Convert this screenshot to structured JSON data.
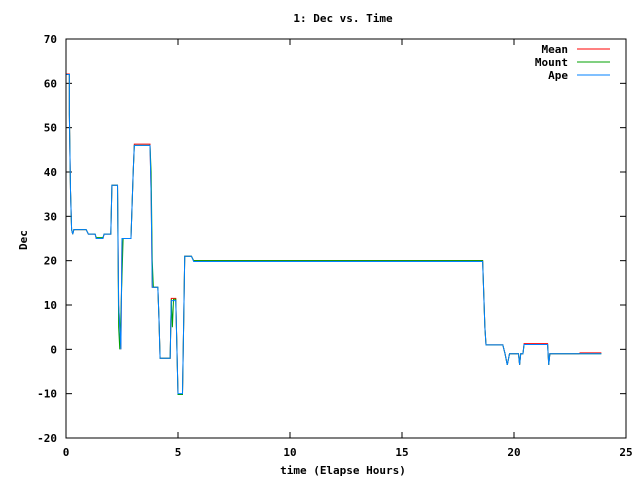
{
  "chart_data": {
    "type": "line",
    "title": "1: Dec vs. Time",
    "xlabel": "time (Elapse Hours)",
    "ylabel": "Dec",
    "xlim": [
      0,
      25
    ],
    "ylim": [
      -20,
      70
    ],
    "xticks": [
      0,
      5,
      10,
      15,
      20,
      25
    ],
    "yticks": [
      -20,
      -10,
      0,
      10,
      20,
      30,
      40,
      50,
      60,
      70
    ],
    "grid": false,
    "legend_position": "top-right",
    "series": [
      {
        "name": "Mean",
        "color": "#ff0000",
        "points": [
          [
            0,
            62.1
          ],
          [
            0.15,
            62.1
          ],
          [
            0.15,
            53
          ],
          [
            0.2,
            36
          ],
          [
            0.25,
            27
          ],
          [
            0.3,
            26
          ],
          [
            0.35,
            27
          ],
          [
            0.9,
            27
          ],
          [
            1.0,
            26
          ],
          [
            1.3,
            26
          ],
          [
            1.35,
            25
          ],
          [
            1.65,
            25
          ],
          [
            1.7,
            26
          ],
          [
            2.0,
            26
          ],
          [
            2.05,
            37
          ],
          [
            2.3,
            37
          ],
          [
            2.35,
            10
          ],
          [
            2.45,
            0
          ],
          [
            2.5,
            25
          ],
          [
            2.9,
            25
          ],
          [
            3.0,
            40
          ],
          [
            3.05,
            46.3
          ],
          [
            3.75,
            46.3
          ],
          [
            3.8,
            35
          ],
          [
            3.85,
            14
          ],
          [
            4.1,
            14
          ],
          [
            4.15,
            7
          ],
          [
            4.2,
            -2
          ],
          [
            4.65,
            -2
          ],
          [
            4.7,
            11.5
          ],
          [
            4.9,
            11.5
          ],
          [
            5.0,
            -10.2
          ],
          [
            5.2,
            -10.2
          ],
          [
            5.25,
            5
          ],
          [
            5.3,
            21
          ],
          [
            5.6,
            21
          ],
          [
            5.7,
            20
          ],
          [
            18.6,
            20
          ],
          [
            18.7,
            5
          ],
          [
            18.75,
            1
          ],
          [
            19.5,
            1
          ],
          [
            19.6,
            -1
          ],
          [
            19.7,
            -3.5
          ],
          [
            19.8,
            -1
          ],
          [
            20.2,
            -1
          ],
          [
            20.25,
            -3.5
          ],
          [
            20.3,
            -1
          ],
          [
            20.4,
            -1
          ],
          [
            20.45,
            1.3
          ],
          [
            21.5,
            1.3
          ],
          [
            21.55,
            -3.5
          ],
          [
            21.6,
            -1
          ],
          [
            22.9,
            -1
          ],
          [
            22.95,
            -0.8
          ],
          [
            23.9,
            -0.8
          ]
        ]
      },
      {
        "name": "Mount",
        "color": "#00a000",
        "points": [
          [
            0,
            62
          ],
          [
            0.15,
            62
          ],
          [
            0.15,
            53
          ],
          [
            0.2,
            36
          ],
          [
            0.25,
            27
          ],
          [
            0.3,
            26
          ],
          [
            0.35,
            27
          ],
          [
            0.9,
            27
          ],
          [
            1.0,
            26
          ],
          [
            1.3,
            26
          ],
          [
            1.35,
            25.2
          ],
          [
            1.65,
            25.2
          ],
          [
            1.7,
            26
          ],
          [
            2.0,
            26
          ],
          [
            2.05,
            37
          ],
          [
            2.3,
            37
          ],
          [
            2.35,
            5
          ],
          [
            2.4,
            0
          ],
          [
            2.45,
            8
          ],
          [
            2.55,
            25
          ],
          [
            2.9,
            25
          ],
          [
            3.0,
            40
          ],
          [
            3.05,
            46
          ],
          [
            3.75,
            46
          ],
          [
            3.8,
            40
          ],
          [
            3.85,
            20
          ],
          [
            3.9,
            14
          ],
          [
            4.1,
            14
          ],
          [
            4.15,
            7
          ],
          [
            4.2,
            -2
          ],
          [
            4.65,
            -2
          ],
          [
            4.7,
            11.3
          ],
          [
            4.75,
            5
          ],
          [
            4.8,
            11.3
          ],
          [
            4.9,
            11.3
          ],
          [
            5.0,
            -10.2
          ],
          [
            5.2,
            -10.2
          ],
          [
            5.25,
            5
          ],
          [
            5.3,
            21
          ],
          [
            5.6,
            21
          ],
          [
            5.7,
            20
          ],
          [
            18.6,
            20
          ],
          [
            18.7,
            5
          ],
          [
            18.75,
            1
          ],
          [
            19.5,
            1
          ],
          [
            19.6,
            -1
          ],
          [
            19.7,
            -3.5
          ],
          [
            19.8,
            -1
          ],
          [
            20.2,
            -1
          ],
          [
            20.25,
            -3.5
          ],
          [
            20.3,
            -1
          ],
          [
            20.4,
            -1
          ],
          [
            20.45,
            1.1
          ],
          [
            21.5,
            1.1
          ],
          [
            21.55,
            -3.5
          ],
          [
            21.6,
            -1
          ],
          [
            22.9,
            -1
          ],
          [
            22.95,
            -1
          ],
          [
            23.9,
            -1
          ]
        ]
      },
      {
        "name": "Ape",
        "color": "#0080ff",
        "points": [
          [
            0,
            62
          ],
          [
            0.15,
            62
          ],
          [
            0.15,
            53
          ],
          [
            0.2,
            36
          ],
          [
            0.25,
            27
          ],
          [
            0.3,
            26
          ],
          [
            0.35,
            27
          ],
          [
            0.9,
            27
          ],
          [
            1.0,
            26
          ],
          [
            1.3,
            26
          ],
          [
            1.35,
            25
          ],
          [
            1.65,
            25
          ],
          [
            1.7,
            26
          ],
          [
            2.0,
            26
          ],
          [
            2.05,
            37
          ],
          [
            2.3,
            37
          ],
          [
            2.35,
            10
          ],
          [
            2.45,
            0
          ],
          [
            2.5,
            25
          ],
          [
            2.9,
            25
          ],
          [
            3.0,
            40
          ],
          [
            3.05,
            46
          ],
          [
            3.75,
            46
          ],
          [
            3.8,
            35
          ],
          [
            3.85,
            14
          ],
          [
            4.1,
            14
          ],
          [
            4.15,
            7
          ],
          [
            4.2,
            -2
          ],
          [
            4.65,
            -2
          ],
          [
            4.7,
            11
          ],
          [
            4.9,
            11
          ],
          [
            5.0,
            -10
          ],
          [
            5.2,
            -10
          ],
          [
            5.25,
            5
          ],
          [
            5.3,
            21
          ],
          [
            5.6,
            21
          ],
          [
            5.7,
            19.8
          ],
          [
            18.6,
            19.8
          ],
          [
            18.7,
            5
          ],
          [
            18.75,
            1
          ],
          [
            19.5,
            1
          ],
          [
            19.6,
            -1
          ],
          [
            19.7,
            -3.5
          ],
          [
            19.8,
            -1
          ],
          [
            20.2,
            -1
          ],
          [
            20.25,
            -3.5
          ],
          [
            20.3,
            -1
          ],
          [
            20.4,
            -1
          ],
          [
            20.45,
            1.1
          ],
          [
            21.5,
            1.1
          ],
          [
            21.55,
            -3.5
          ],
          [
            21.6,
            -1
          ],
          [
            22.9,
            -1
          ],
          [
            22.95,
            -1
          ],
          [
            23.9,
            -1
          ]
        ]
      }
    ]
  }
}
